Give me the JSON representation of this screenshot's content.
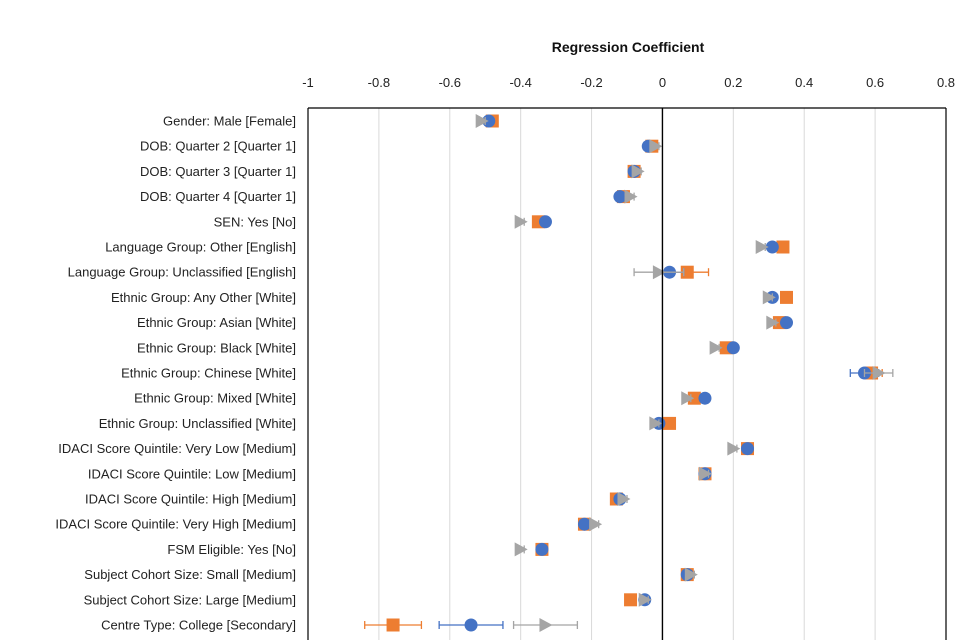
{
  "chart_data": {
    "type": "scatter",
    "title": "Regression Coefficient",
    "xlim": [
      -1,
      0.8
    ],
    "xticks": [
      -1,
      -0.8,
      -0.6,
      -0.4,
      -0.2,
      0,
      0.2,
      0.4,
      0.6,
      0.8
    ],
    "xtick_labels": [
      "-1",
      "-0.8",
      "-0.6",
      "-0.4",
      "-0.2",
      "0",
      "0.2",
      "0.4",
      "0.6",
      "0.8"
    ],
    "grid": true,
    "categories": [
      "Gender: Male [Female]",
      "DOB: Quarter 2 [Quarter 1]",
      "DOB: Quarter 3 [Quarter 1]",
      "DOB: Quarter 4 [Quarter 1]",
      "SEN: Yes [No]",
      "Language Group: Other [English]",
      "Language Group: Unclassified [English]",
      "Ethnic Group: Any Other [White]",
      "Ethnic Group: Asian [White]",
      "Ethnic Group: Black [White]",
      "Ethnic Group: Chinese [White]",
      "Ethnic Group: Mixed [White]",
      "Ethnic Group: Unclassified [White]",
      "IDACI Score Quintile: Very Low [Medium]",
      "IDACI Score Quintile: Low [Medium]",
      "IDACI Score Quintile: High [Medium]",
      "IDACI Score Quintile: Very High [Medium]",
      "FSM Eligible: Yes [No]",
      "Subject Cohort Size: Small [Medium]",
      "Subject Cohort Size: Large [Medium]",
      "Centre Type: College [Secondary]"
    ],
    "series": [
      {
        "name": "series-square",
        "marker": "square",
        "color": "#ED7D31",
        "values": [
          -0.48,
          -0.03,
          -0.08,
          -0.11,
          -0.35,
          0.34,
          0.07,
          0.35,
          0.33,
          0.18,
          0.59,
          0.09,
          0.02,
          0.24,
          0.12,
          -0.13,
          -0.22,
          -0.34,
          0.07,
          -0.09,
          -0.76
        ],
        "errors": [
          0.01,
          0.01,
          0.01,
          0.01,
          0.01,
          0.01,
          0.06,
          0.01,
          0.01,
          0.01,
          0.03,
          0.01,
          0.01,
          0.01,
          0.01,
          0.01,
          0.01,
          0.01,
          0.01,
          0.01,
          0.08
        ]
      },
      {
        "name": "series-circle",
        "marker": "circle",
        "color": "#4472C4",
        "values": [
          -0.49,
          -0.04,
          -0.08,
          -0.12,
          -0.33,
          0.31,
          0.02,
          0.31,
          0.35,
          0.2,
          0.57,
          0.12,
          -0.01,
          0.24,
          0.12,
          -0.12,
          -0.22,
          -0.34,
          0.07,
          -0.05,
          -0.54
        ],
        "errors": [
          0.01,
          0.01,
          0.01,
          0.01,
          0.01,
          0.01,
          0.04,
          0.01,
          0.01,
          0.01,
          0.04,
          0.01,
          0.01,
          0.01,
          0.01,
          0.01,
          0.01,
          0.01,
          0.01,
          0.01,
          0.09
        ]
      },
      {
        "name": "series-triangle",
        "marker": "triangle",
        "color": "#A5A5A5",
        "values": [
          -0.51,
          -0.02,
          -0.07,
          -0.09,
          -0.4,
          0.28,
          -0.01,
          0.3,
          0.31,
          0.15,
          0.61,
          0.07,
          -0.02,
          0.2,
          0.12,
          -0.11,
          -0.19,
          -0.4,
          0.08,
          -0.05,
          -0.33
        ],
        "errors": [
          0.01,
          0.01,
          0.01,
          0.01,
          0.01,
          0.01,
          0.07,
          0.01,
          0.01,
          0.01,
          0.04,
          0.01,
          0.01,
          0.01,
          0.01,
          0.01,
          0.01,
          0.01,
          0.01,
          0.01,
          0.09
        ]
      }
    ]
  }
}
